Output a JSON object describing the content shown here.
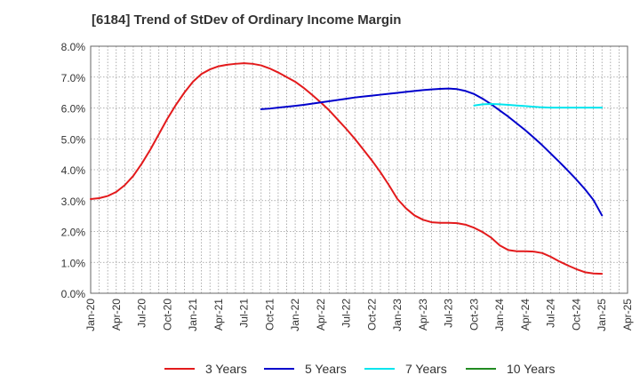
{
  "chart_data": {
    "type": "line",
    "title": "[6184]  Trend of StDev of Ordinary Income Margin",
    "xlabel": "",
    "ylabel": "",
    "x_tick_labels": [
      "Jan-20",
      "Apr-20",
      "Jul-20",
      "Oct-20",
      "Jan-21",
      "Apr-21",
      "Jul-21",
      "Oct-21",
      "Jan-22",
      "Apr-22",
      "Jul-22",
      "Oct-22",
      "Jan-23",
      "Apr-23",
      "Jul-23",
      "Oct-23",
      "Jan-24",
      "Apr-24",
      "Jul-24",
      "Oct-24",
      "Jan-25",
      "Apr-25"
    ],
    "y_tick_labels": [
      "0.0%",
      "1.0%",
      "2.0%",
      "3.0%",
      "4.0%",
      "5.0%",
      "6.0%",
      "7.0%",
      "8.0%"
    ],
    "ylim": [
      0,
      8
    ],
    "grid": true,
    "legend_position": "bottom",
    "series": [
      {
        "name": "3 Years",
        "color": "#e31a1c",
        "points": [
          [
            "2020-01",
            3.05
          ],
          [
            "2020-02",
            3.08
          ],
          [
            "2020-03",
            3.15
          ],
          [
            "2020-04",
            3.28
          ],
          [
            "2020-05",
            3.5
          ],
          [
            "2020-06",
            3.8
          ],
          [
            "2020-07",
            4.2
          ],
          [
            "2020-08",
            4.65
          ],
          [
            "2020-09",
            5.15
          ],
          [
            "2020-10",
            5.65
          ],
          [
            "2020-11",
            6.1
          ],
          [
            "2020-12",
            6.5
          ],
          [
            "2021-01",
            6.85
          ],
          [
            "2021-02",
            7.1
          ],
          [
            "2021-03",
            7.25
          ],
          [
            "2021-04",
            7.35
          ],
          [
            "2021-05",
            7.4
          ],
          [
            "2021-06",
            7.43
          ],
          [
            "2021-07",
            7.45
          ],
          [
            "2021-08",
            7.43
          ],
          [
            "2021-09",
            7.38
          ],
          [
            "2021-10",
            7.28
          ],
          [
            "2021-11",
            7.15
          ],
          [
            "2021-12",
            7.0
          ],
          [
            "2022-01",
            6.85
          ],
          [
            "2022-02",
            6.65
          ],
          [
            "2022-03",
            6.42
          ],
          [
            "2022-04",
            6.18
          ],
          [
            "2022-05",
            5.92
          ],
          [
            "2022-06",
            5.62
          ],
          [
            "2022-07",
            5.32
          ],
          [
            "2022-08",
            5.0
          ],
          [
            "2022-09",
            4.65
          ],
          [
            "2022-10",
            4.3
          ],
          [
            "2022-11",
            3.92
          ],
          [
            "2022-12",
            3.5
          ],
          [
            "2023-01",
            3.05
          ],
          [
            "2023-02",
            2.75
          ],
          [
            "2023-03",
            2.52
          ],
          [
            "2023-04",
            2.38
          ],
          [
            "2023-05",
            2.3
          ],
          [
            "2023-06",
            2.28
          ],
          [
            "2023-07",
            2.28
          ],
          [
            "2023-08",
            2.27
          ],
          [
            "2023-09",
            2.22
          ],
          [
            "2023-10",
            2.12
          ],
          [
            "2023-11",
            1.98
          ],
          [
            "2023-12",
            1.8
          ],
          [
            "2024-01",
            1.55
          ],
          [
            "2024-02",
            1.4
          ],
          [
            "2024-03",
            1.36
          ],
          [
            "2024-04",
            1.36
          ],
          [
            "2024-05",
            1.35
          ],
          [
            "2024-06",
            1.3
          ],
          [
            "2024-07",
            1.18
          ],
          [
            "2024-08",
            1.03
          ],
          [
            "2024-09",
            0.9
          ],
          [
            "2024-10",
            0.78
          ],
          [
            "2024-11",
            0.68
          ],
          [
            "2024-12",
            0.64
          ],
          [
            "2025-01",
            0.63
          ]
        ]
      },
      {
        "name": "5 Years",
        "color": "#0000cc",
        "points": [
          [
            "2021-09",
            5.96
          ],
          [
            "2021-10",
            5.98
          ],
          [
            "2021-11",
            6.01
          ],
          [
            "2021-12",
            6.04
          ],
          [
            "2022-01",
            6.07
          ],
          [
            "2022-02",
            6.1
          ],
          [
            "2022-03",
            6.14
          ],
          [
            "2022-04",
            6.18
          ],
          [
            "2022-05",
            6.22
          ],
          [
            "2022-06",
            6.26
          ],
          [
            "2022-07",
            6.3
          ],
          [
            "2022-08",
            6.34
          ],
          [
            "2022-09",
            6.37
          ],
          [
            "2022-10",
            6.4
          ],
          [
            "2022-11",
            6.43
          ],
          [
            "2022-12",
            6.46
          ],
          [
            "2023-01",
            6.49
          ],
          [
            "2023-02",
            6.52
          ],
          [
            "2023-03",
            6.55
          ],
          [
            "2023-04",
            6.58
          ],
          [
            "2023-05",
            6.6
          ],
          [
            "2023-06",
            6.62
          ],
          [
            "2023-07",
            6.63
          ],
          [
            "2023-08",
            6.61
          ],
          [
            "2023-09",
            6.55
          ],
          [
            "2023-10",
            6.45
          ],
          [
            "2023-11",
            6.3
          ],
          [
            "2023-12",
            6.12
          ],
          [
            "2024-01",
            5.92
          ],
          [
            "2024-02",
            5.72
          ],
          [
            "2024-03",
            5.5
          ],
          [
            "2024-04",
            5.28
          ],
          [
            "2024-05",
            5.04
          ],
          [
            "2024-06",
            4.79
          ],
          [
            "2024-07",
            4.52
          ],
          [
            "2024-08",
            4.25
          ],
          [
            "2024-09",
            3.97
          ],
          [
            "2024-10",
            3.68
          ],
          [
            "2024-11",
            3.37
          ],
          [
            "2024-12",
            3.02
          ],
          [
            "2025-01",
            2.52
          ]
        ]
      },
      {
        "name": "7 Years",
        "color": "#00e5ee",
        "points": [
          [
            "2023-10",
            6.08
          ],
          [
            "2023-11",
            6.12
          ],
          [
            "2023-12",
            6.13
          ],
          [
            "2024-01",
            6.12
          ],
          [
            "2024-02",
            6.1
          ],
          [
            "2024-03",
            6.08
          ],
          [
            "2024-04",
            6.06
          ],
          [
            "2024-05",
            6.04
          ],
          [
            "2024-06",
            6.02
          ],
          [
            "2024-07",
            6.01
          ],
          [
            "2024-08",
            6.01
          ],
          [
            "2024-09",
            6.01
          ],
          [
            "2024-10",
            6.01
          ],
          [
            "2024-11",
            6.01
          ],
          [
            "2024-12",
            6.01
          ],
          [
            "2025-01",
            6.01
          ]
        ]
      },
      {
        "name": "10 Years",
        "color": "#228b22",
        "points": []
      }
    ]
  }
}
